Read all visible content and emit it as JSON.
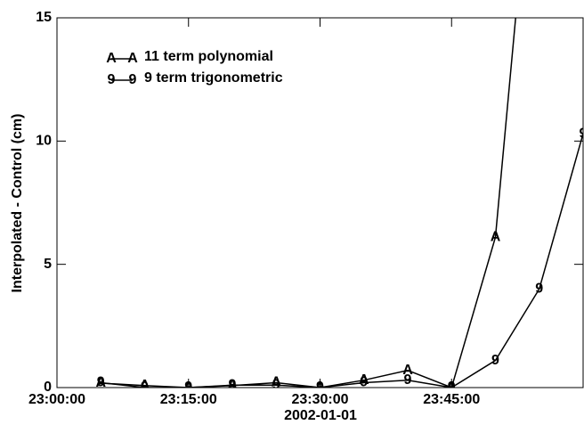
{
  "chart_data": {
    "type": "line",
    "xlabel": "2002-01-01",
    "ylabel": "Interpolated - Control (cm)",
    "x": [
      "23:05:00",
      "23:10:00",
      "23:15:00",
      "23:20:00",
      "23:25:00",
      "23:30:00",
      "23:35:00",
      "23:40:00",
      "23:45:00",
      "23:50:00",
      "23:55:00",
      "24:00:00"
    ],
    "series": [
      {
        "name": "11 term polynomial",
        "marker": "A",
        "color": "#000000",
        "values": [
          0.18,
          0.08,
          0.0,
          0.08,
          0.2,
          0.0,
          0.3,
          0.7,
          0.0,
          6.1,
          25.4,
          null
        ]
      },
      {
        "name": "9 term trigonometric",
        "marker": "9",
        "color": "#000000",
        "values": [
          0.2,
          0.0,
          0.0,
          0.1,
          0.1,
          0.0,
          0.2,
          0.3,
          0.0,
          1.1,
          4.0,
          10.3
        ]
      }
    ],
    "xlim": [
      "23:00:00",
      "24:00:00"
    ],
    "xticks": [
      "23:00:00",
      "23:15:00",
      "23:30:00",
      "23:45:00"
    ],
    "ylim": [
      0,
      15
    ],
    "yticks": [
      0,
      5,
      10,
      15
    ],
    "legend": "upper left"
  }
}
